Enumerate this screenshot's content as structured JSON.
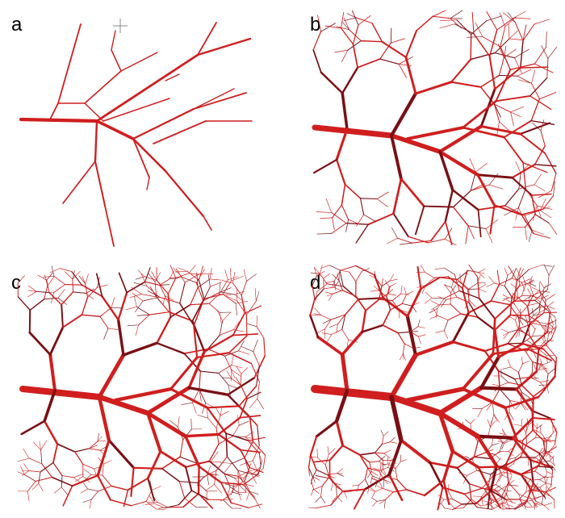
{
  "figure": {
    "background": "#ffffff",
    "vessel_color": "#d01e1e",
    "vessel_dark_color": "#7a0f14",
    "panels": [
      {
        "id": "a",
        "label": "a",
        "icons": [
          "crosshair-icon"
        ]
      },
      {
        "id": "b",
        "label": "b"
      },
      {
        "id": "c",
        "label": "c"
      },
      {
        "id": "d",
        "label": "d"
      }
    ]
  }
}
